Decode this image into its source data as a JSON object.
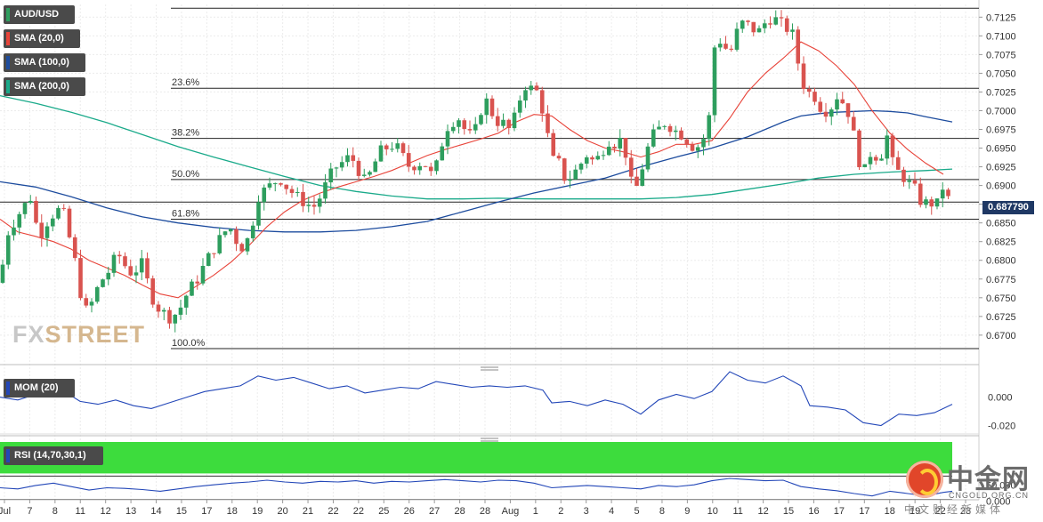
{
  "legend": {
    "symbol": "AUD/USD",
    "sma20": "SMA (20,0)",
    "sma100": "SMA (100,0)",
    "sma200": "SMA (200,0)",
    "mom": "MOM (20)",
    "rsi": "RSI (14,70,30,1)"
  },
  "current_price": "0.687790",
  "watermark": {
    "part1": "FX",
    "part2": "STREET"
  },
  "logo": {
    "title": "中金网",
    "site": "CNGOLD.ORG.CN",
    "subtitle": "中文财经新媒体"
  },
  "colors": {
    "bull": "#2e9e5e",
    "bear": "#d9534f",
    "sma20": "#e8443a",
    "sma100": "#1d4c9e",
    "sma200": "#1aaa8a",
    "mom": "#2347b8",
    "rsi": "#2347b8",
    "rsi_overbought": "#3ddc3d",
    "rsi_oversold": "#f47a7a",
    "price_tag": "#1f3864"
  },
  "chart_data": {
    "type": "candlestick",
    "symbol": "AUD/USD",
    "price_axis": {
      "ticks": [
        "0.7125",
        "0.7100",
        "0.7075",
        "0.7050",
        "0.7025",
        "0.7000",
        "0.6975",
        "0.6950",
        "0.6925",
        "0.6900",
        "0.6875",
        "0.6850",
        "0.6825",
        "0.6800",
        "0.6775",
        "0.6750",
        "0.6725",
        "0.6700"
      ],
      "range": [
        0.6663,
        0.7142
      ]
    },
    "date_labels": [
      "Jul",
      "7",
      "8",
      "11",
      "12",
      "13",
      "14",
      "15",
      "17",
      "18",
      "19",
      "20",
      "21",
      "22",
      "22",
      "25",
      "26",
      "27",
      "28",
      "28",
      "Aug",
      "1",
      "2",
      "3",
      "4",
      "5",
      "8",
      "9",
      "10",
      "11",
      "12",
      "15",
      "16",
      "17",
      "17",
      "18",
      "19",
      "22",
      "23"
    ],
    "fibonacci": [
      {
        "label": "23.6%",
        "level": 0.703
      },
      {
        "label": "38.2%",
        "level": 0.6963
      },
      {
        "label": "50.0%",
        "level": 0.6908
      },
      {
        "label": "61.8%",
        "level": 0.6855
      },
      {
        "label": "100.0%",
        "level": 0.6682
      }
    ],
    "top_line": 0.7137,
    "last_price": 0.68779,
    "candle_path": [
      [
        0,
        0.677
      ],
      [
        8,
        0.6835
      ],
      [
        20,
        0.686
      ],
      [
        34,
        0.6885
      ],
      [
        44,
        0.683
      ],
      [
        52,
        0.685
      ],
      [
        62,
        0.6865
      ],
      [
        70,
        0.687
      ],
      [
        78,
        0.683
      ],
      [
        86,
        0.679
      ],
      [
        94,
        0.673
      ],
      [
        102,
        0.674
      ],
      [
        112,
        0.677
      ],
      [
        122,
        0.6785
      ],
      [
        132,
        0.681
      ],
      [
        142,
        0.679
      ],
      [
        150,
        0.678
      ],
      [
        158,
        0.68
      ],
      [
        166,
        0.677
      ],
      [
        174,
        0.674
      ],
      [
        184,
        0.673
      ],
      [
        192,
        0.6722
      ],
      [
        202,
        0.6735
      ],
      [
        212,
        0.676
      ],
      [
        222,
        0.6775
      ],
      [
        232,
        0.68
      ],
      [
        240,
        0.6815
      ],
      [
        250,
        0.6835
      ],
      [
        258,
        0.6845
      ],
      [
        266,
        0.6825
      ],
      [
        274,
        0.6815
      ],
      [
        282,
        0.684
      ],
      [
        290,
        0.6885
      ],
      [
        298,
        0.6895
      ],
      [
        306,
        0.6902
      ],
      [
        314,
        0.691
      ],
      [
        324,
        0.6895
      ],
      [
        334,
        0.6885
      ],
      [
        344,
        0.6875
      ],
      [
        354,
        0.6872
      ],
      [
        362,
        0.689
      ],
      [
        370,
        0.6912
      ],
      [
        378,
        0.6925
      ],
      [
        386,
        0.6932
      ],
      [
        394,
        0.694
      ],
      [
        402,
        0.6922
      ],
      [
        410,
        0.6905
      ],
      [
        418,
        0.692
      ],
      [
        426,
        0.6945
      ],
      [
        434,
        0.695
      ],
      [
        444,
        0.6955
      ],
      [
        452,
        0.694
      ],
      [
        460,
        0.6925
      ],
      [
        468,
        0.6928
      ],
      [
        476,
        0.6932
      ],
      [
        484,
        0.6915
      ],
      [
        492,
        0.693
      ],
      [
        500,
        0.6975
      ],
      [
        508,
        0.6985
      ],
      [
        516,
        0.699
      ],
      [
        524,
        0.697
      ],
      [
        532,
        0.6965
      ],
      [
        540,
        0.7
      ],
      [
        548,
        0.7015
      ],
      [
        556,
        0.6985
      ],
      [
        564,
        0.6985
      ],
      [
        572,
        0.6975
      ],
      [
        580,
        0.6995
      ],
      [
        588,
        0.7035
      ],
      [
        596,
        0.703
      ],
      [
        604,
        0.7025
      ],
      [
        612,
        0.699
      ],
      [
        620,
        0.6935
      ],
      [
        628,
        0.693
      ],
      [
        636,
        0.6905
      ],
      [
        644,
        0.6915
      ],
      [
        652,
        0.6928
      ],
      [
        660,
        0.6942
      ],
      [
        668,
        0.693
      ],
      [
        676,
        0.6945
      ],
      [
        684,
        0.696
      ],
      [
        692,
        0.6955
      ],
      [
        700,
        0.6965
      ],
      [
        708,
        0.6905
      ],
      [
        716,
        0.6898
      ],
      [
        724,
        0.6935
      ],
      [
        732,
        0.6965
      ],
      [
        740,
        0.6975
      ],
      [
        748,
        0.6985
      ],
      [
        756,
        0.6975
      ],
      [
        764,
        0.697
      ],
      [
        772,
        0.696
      ],
      [
        780,
        0.695
      ],
      [
        788,
        0.6955
      ],
      [
        796,
        0.698
      ],
      [
        804,
        0.71
      ],
      [
        812,
        0.709
      ],
      [
        820,
        0.7075
      ],
      [
        828,
        0.7105
      ],
      [
        836,
        0.712
      ],
      [
        844,
        0.711
      ],
      [
        852,
        0.7105
      ],
      [
        860,
        0.7118
      ],
      [
        868,
        0.7125
      ],
      [
        876,
        0.7118
      ],
      [
        884,
        0.711
      ],
      [
        892,
        0.71
      ],
      [
        900,
        0.704
      ],
      [
        908,
        0.7025
      ],
      [
        916,
        0.7018
      ],
      [
        924,
        0.7
      ],
      [
        932,
        0.7
      ],
      [
        940,
        0.702
      ],
      [
        948,
        0.701
      ],
      [
        956,
        0.699
      ],
      [
        964,
        0.6935
      ],
      [
        972,
        0.692
      ],
      [
        980,
        0.695
      ],
      [
        988,
        0.693
      ],
      [
        996,
        0.697
      ],
      [
        1004,
        0.6925
      ],
      [
        1012,
        0.6915
      ],
      [
        1020,
        0.6905
      ],
      [
        1028,
        0.6895
      ],
      [
        1036,
        0.6875
      ],
      [
        1044,
        0.6878
      ],
      [
        1052,
        0.6872
      ],
      [
        1060,
        0.69
      ],
      [
        1066,
        0.688
      ],
      [
        1070,
        0.68779
      ]
    ],
    "sma20_path": [
      [
        0,
        0.6855
      ],
      [
        20,
        0.6838
      ],
      [
        40,
        0.6832
      ],
      [
        60,
        0.6825
      ],
      [
        80,
        0.6815
      ],
      [
        100,
        0.68
      ],
      [
        120,
        0.679
      ],
      [
        140,
        0.678
      ],
      [
        160,
        0.6767
      ],
      [
        180,
        0.6755
      ],
      [
        200,
        0.675
      ],
      [
        220,
        0.6765
      ],
      [
        240,
        0.678
      ],
      [
        260,
        0.6798
      ],
      [
        280,
        0.682
      ],
      [
        300,
        0.6845
      ],
      [
        320,
        0.6865
      ],
      [
        340,
        0.688
      ],
      [
        360,
        0.689
      ],
      [
        380,
        0.6898
      ],
      [
        400,
        0.6905
      ],
      [
        420,
        0.6912
      ],
      [
        440,
        0.692
      ],
      [
        460,
        0.693
      ],
      [
        480,
        0.694
      ],
      [
        500,
        0.6948
      ],
      [
        520,
        0.6955
      ],
      [
        540,
        0.6962
      ],
      [
        560,
        0.697
      ],
      [
        580,
        0.6985
      ],
      [
        600,
        0.6995
      ],
      [
        620,
        0.6993
      ],
      [
        640,
        0.6975
      ],
      [
        660,
        0.696
      ],
      [
        680,
        0.695
      ],
      [
        700,
        0.6945
      ],
      [
        720,
        0.6938
      ],
      [
        740,
        0.6945
      ],
      [
        760,
        0.6955
      ],
      [
        780,
        0.6955
      ],
      [
        800,
        0.696
      ],
      [
        820,
        0.699
      ],
      [
        840,
        0.7025
      ],
      [
        860,
        0.705
      ],
      [
        880,
        0.707
      ],
      [
        900,
        0.7092
      ],
      [
        920,
        0.708
      ],
      [
        940,
        0.706
      ],
      [
        960,
        0.7035
      ],
      [
        980,
        0.7
      ],
      [
        1000,
        0.697
      ],
      [
        1020,
        0.6948
      ],
      [
        1040,
        0.693
      ],
      [
        1060,
        0.6915
      ]
    ],
    "sma100_path": [
      [
        0,
        0.6905
      ],
      [
        40,
        0.6898
      ],
      [
        80,
        0.6885
      ],
      [
        120,
        0.687
      ],
      [
        160,
        0.6858
      ],
      [
        200,
        0.685
      ],
      [
        240,
        0.6844
      ],
      [
        280,
        0.684
      ],
      [
        320,
        0.6838
      ],
      [
        360,
        0.6838
      ],
      [
        400,
        0.684
      ],
      [
        440,
        0.6845
      ],
      [
        480,
        0.6852
      ],
      [
        520,
        0.6865
      ],
      [
        560,
        0.6878
      ],
      [
        600,
        0.689
      ],
      [
        640,
        0.69
      ],
      [
        680,
        0.691
      ],
      [
        720,
        0.6925
      ],
      [
        760,
        0.6938
      ],
      [
        800,
        0.695
      ],
      [
        840,
        0.6965
      ],
      [
        880,
        0.6985
      ],
      [
        900,
        0.6993
      ],
      [
        920,
        0.6996
      ],
      [
        940,
        0.6998
      ],
      [
        960,
        0.6999
      ],
      [
        980,
        0.7
      ],
      [
        1000,
        0.6999
      ],
      [
        1020,
        0.6997
      ],
      [
        1040,
        0.6992
      ],
      [
        1070,
        0.6985
      ]
    ],
    "sma200_path": [
      [
        0,
        0.702
      ],
      [
        40,
        0.701
      ],
      [
        80,
        0.6998
      ],
      [
        120,
        0.6984
      ],
      [
        160,
        0.6968
      ],
      [
        200,
        0.6952
      ],
      [
        240,
        0.6938
      ],
      [
        280,
        0.6925
      ],
      [
        320,
        0.6912
      ],
      [
        360,
        0.69
      ],
      [
        400,
        0.6892
      ],
      [
        440,
        0.6886
      ],
      [
        480,
        0.6882
      ],
      [
        520,
        0.6882
      ],
      [
        560,
        0.6883
      ],
      [
        600,
        0.6882
      ],
      [
        640,
        0.6882
      ],
      [
        680,
        0.6882
      ],
      [
        720,
        0.6882
      ],
      [
        760,
        0.6884
      ],
      [
        800,
        0.6888
      ],
      [
        840,
        0.6895
      ],
      [
        880,
        0.6902
      ],
      [
        920,
        0.691
      ],
      [
        960,
        0.6915
      ],
      [
        1000,
        0.6918
      ],
      [
        1040,
        0.692
      ],
      [
        1070,
        0.6922
      ]
    ],
    "mom": {
      "axis": [
        "0.000",
        "-0.020"
      ],
      "range": [
        -0.026,
        0.018
      ],
      "path": [
        [
          0,
          0.0
        ],
        [
          20,
          -0.002
        ],
        [
          40,
          0.002
        ],
        [
          60,
          0.01
        ],
        [
          70,
          0.005
        ],
        [
          90,
          -0.003
        ],
        [
          110,
          -0.005
        ],
        [
          130,
          -0.002
        ],
        [
          150,
          -0.006
        ],
        [
          170,
          -0.008
        ],
        [
          190,
          -0.004
        ],
        [
          210,
          0.0
        ],
        [
          230,
          0.004
        ],
        [
          250,
          0.006
        ],
        [
          270,
          0.008
        ],
        [
          290,
          0.015
        ],
        [
          310,
          0.012
        ],
        [
          330,
          0.014
        ],
        [
          350,
          0.01
        ],
        [
          370,
          0.006
        ],
        [
          390,
          0.008
        ],
        [
          410,
          0.003
        ],
        [
          430,
          0.005
        ],
        [
          450,
          0.007
        ],
        [
          470,
          0.006
        ],
        [
          490,
          0.011
        ],
        [
          510,
          0.009
        ],
        [
          530,
          0.007
        ],
        [
          550,
          0.008
        ],
        [
          570,
          0.007
        ],
        [
          590,
          0.008
        ],
        [
          610,
          0.005
        ],
        [
          620,
          -0.004
        ],
        [
          640,
          -0.003
        ],
        [
          660,
          -0.006
        ],
        [
          680,
          -0.002
        ],
        [
          700,
          -0.005
        ],
        [
          720,
          -0.012
        ],
        [
          740,
          -0.002
        ],
        [
          760,
          0.002
        ],
        [
          780,
          -0.001
        ],
        [
          800,
          0.004
        ],
        [
          820,
          0.018
        ],
        [
          840,
          0.012
        ],
        [
          860,
          0.01
        ],
        [
          880,
          0.015
        ],
        [
          900,
          0.008
        ],
        [
          910,
          -0.006
        ],
        [
          930,
          -0.007
        ],
        [
          950,
          -0.009
        ],
        [
          970,
          -0.018
        ],
        [
          990,
          -0.02
        ],
        [
          1010,
          -0.012
        ],
        [
          1030,
          -0.013
        ],
        [
          1050,
          -0.011
        ],
        [
          1070,
          -0.005
        ]
      ]
    },
    "rsi": {
      "axis": [
        "50.000",
        "0.000"
      ],
      "range": [
        0,
        100
      ],
      "overbought": 70,
      "oversold": 30,
      "path": [
        [
          0,
          50
        ],
        [
          20,
          48
        ],
        [
          40,
          54
        ],
        [
          60,
          58
        ],
        [
          80,
          52
        ],
        [
          100,
          46
        ],
        [
          120,
          50
        ],
        [
          140,
          49
        ],
        [
          160,
          47
        ],
        [
          180,
          44
        ],
        [
          200,
          48
        ],
        [
          220,
          52
        ],
        [
          240,
          55
        ],
        [
          260,
          58
        ],
        [
          280,
          60
        ],
        [
          300,
          63
        ],
        [
          320,
          60
        ],
        [
          340,
          58
        ],
        [
          360,
          61
        ],
        [
          380,
          60
        ],
        [
          400,
          62
        ],
        [
          420,
          58
        ],
        [
          440,
          61
        ],
        [
          460,
          60
        ],
        [
          480,
          62
        ],
        [
          500,
          64
        ],
        [
          520,
          62
        ],
        [
          540,
          60
        ],
        [
          560,
          63
        ],
        [
          580,
          62
        ],
        [
          600,
          58
        ],
        [
          620,
          50
        ],
        [
          640,
          52
        ],
        [
          660,
          54
        ],
        [
          680,
          52
        ],
        [
          700,
          50
        ],
        [
          720,
          48
        ],
        [
          740,
          54
        ],
        [
          760,
          52
        ],
        [
          780,
          55
        ],
        [
          800,
          62
        ],
        [
          820,
          66
        ],
        [
          840,
          64
        ],
        [
          860,
          62
        ],
        [
          880,
          63
        ],
        [
          900,
          52
        ],
        [
          920,
          48
        ],
        [
          940,
          45
        ],
        [
          960,
          40
        ],
        [
          980,
          36
        ],
        [
          1000,
          44
        ],
        [
          1020,
          40
        ],
        [
          1040,
          36
        ],
        [
          1060,
          42
        ],
        [
          1070,
          44
        ]
      ]
    }
  }
}
